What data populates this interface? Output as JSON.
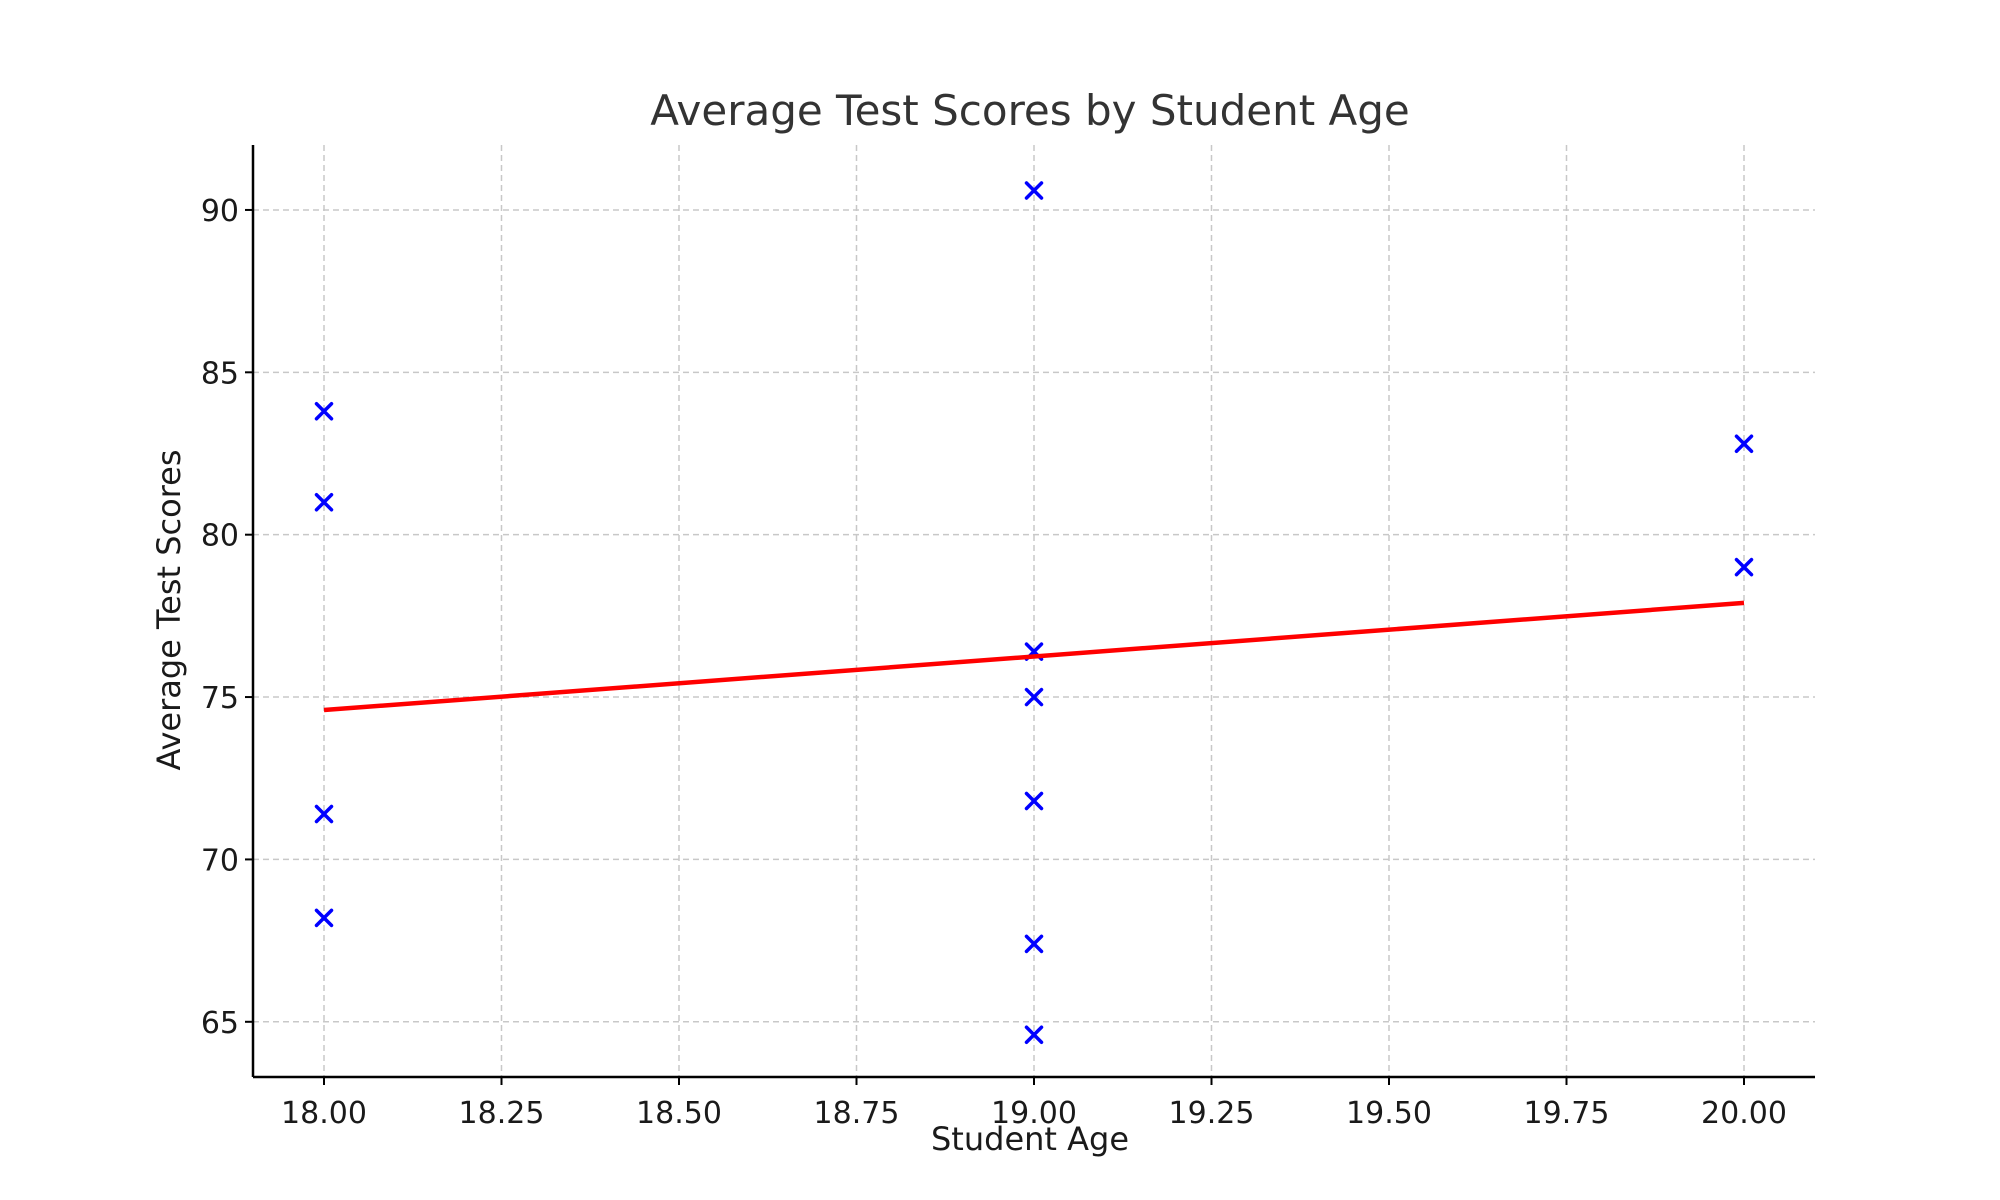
{
  "chart_data": {
    "type": "scatter",
    "title": "Average Test Scores by Student Age",
    "xlabel": "Student Age",
    "ylabel": "Average Test Scores",
    "xlim": [
      17.9,
      20.1
    ],
    "ylim": [
      63.3,
      92
    ],
    "x_ticks": [
      "18.00",
      "18.25",
      "18.50",
      "18.75",
      "19.00",
      "19.25",
      "19.50",
      "19.75",
      "20.00"
    ],
    "y_ticks": [
      "65",
      "70",
      "75",
      "80",
      "85",
      "90"
    ],
    "grid": true,
    "points": [
      {
        "x": 18,
        "y": 83.8
      },
      {
        "x": 18,
        "y": 81.0
      },
      {
        "x": 18,
        "y": 71.4
      },
      {
        "x": 18,
        "y": 68.2
      },
      {
        "x": 19,
        "y": 90.6
      },
      {
        "x": 19,
        "y": 76.4
      },
      {
        "x": 19,
        "y": 75.0
      },
      {
        "x": 19,
        "y": 71.8
      },
      {
        "x": 19,
        "y": 67.4
      },
      {
        "x": 19,
        "y": 64.6
      },
      {
        "x": 20,
        "y": 82.8
      },
      {
        "x": 20,
        "y": 79.0
      }
    ],
    "marker": "x",
    "marker_color": "#0000ff",
    "trend_line": {
      "x": [
        18,
        20
      ],
      "y": [
        74.6,
        77.9
      ],
      "color": "#ff0000"
    }
  }
}
